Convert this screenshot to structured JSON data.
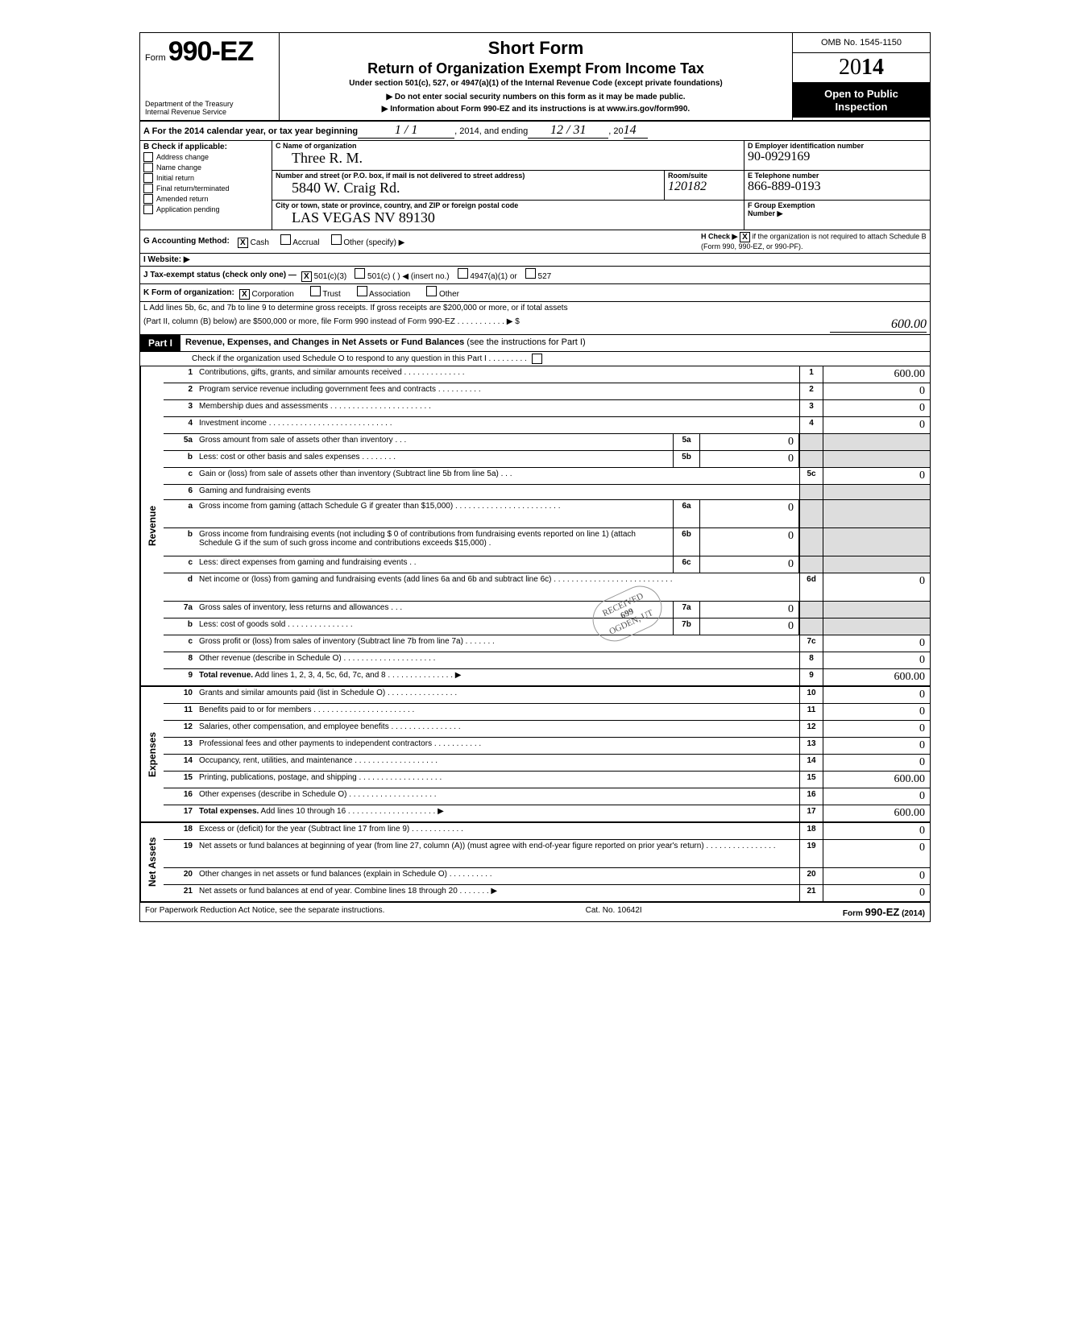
{
  "header": {
    "form_prefix": "Form",
    "form_number": "990-EZ",
    "dept1": "Department of the Treasury",
    "dept2": "Internal Revenue Service",
    "title_short": "Short Form",
    "title_main": "Return of Organization Exempt From Income Tax",
    "title_sub": "Under section 501(c), 527, or 4947(a)(1) of the Internal Revenue Code (except private foundations)",
    "note1": "Do not enter social security numbers on this form as it may be made public.",
    "note2": "Information about Form 990-EZ and its instructions is at www.irs.gov/form990.",
    "omb": "OMB No. 1545-1150",
    "year_prefix": "20",
    "year_bold": "14",
    "inspect1": "Open to Public",
    "inspect2": "Inspection"
  },
  "rowA": {
    "lbl": "A For the 2014 calendar year, or tax year beginning",
    "begin": "1 / 1",
    "mid": ", 2014, and ending",
    "end": "12 / 31",
    "yr_lbl": ", 20",
    "yr": "14"
  },
  "colB": {
    "hdr": "B Check if applicable:",
    "items": [
      "Address change",
      "Name change",
      "Initial return",
      "Final return/terminated",
      "Amended return",
      "Application pending"
    ]
  },
  "colC": {
    "name_lbl": "C  Name of organization",
    "name_val": "Three R. M.",
    "addr_lbl": "Number and street (or P.O. box, if mail is not delivered to street address)",
    "addr_val": "5840 W. Craig Rd.",
    "room_lbl": "Room/suite",
    "room_val": "120182",
    "city_lbl": "City or town, state or province, country, and ZIP or foreign postal code",
    "city_val": "LAS VEGAS    NV    89130"
  },
  "colD": {
    "ein_lbl": "D Employer identification number",
    "ein_val": "90-0929169",
    "tel_lbl": "E Telephone number",
    "tel_val": "866-889-0193",
    "grp_lbl": "F Group Exemption",
    "grp_lbl2": "Number ▶"
  },
  "lineG": {
    "lbl": "G Accounting Method:",
    "opts": [
      "Cash",
      "Accrual",
      "Other (specify) ▶"
    ],
    "checked": 0
  },
  "lineH": {
    "lbl": "H Check ▶",
    "txt": "if the organization is not required to attach Schedule B (Form 990, 990-EZ, or 990-PF).",
    "checked": true
  },
  "lineI": {
    "lbl": "I  Website: ▶"
  },
  "lineJ": {
    "lbl": "J Tax-exempt status (check only one) —",
    "opts": [
      "501(c)(3)",
      "501(c) (        ) ◀ (insert no.)",
      "4947(a)(1) or",
      "527"
    ],
    "checked": 0
  },
  "lineK": {
    "lbl": "K Form of organization:",
    "opts": [
      "Corporation",
      "Trust",
      "Association",
      "Other"
    ],
    "checked": 0
  },
  "lineL": {
    "txt1": "L Add lines 5b, 6c, and 7b to line 9 to determine gross receipts. If gross receipts are $200,000 or more, or if total assets",
    "txt2": "(Part II, column (B) below) are $500,000 or more, file Form 990 instead of Form 990-EZ .  .  .  .  .  .  .  .  .  .  .  ▶  $",
    "val": "600.00"
  },
  "part1": {
    "tag": "Part I",
    "title_b": "Revenue, Expenses, and Changes in Net Assets or Fund Balances",
    "title_rest": " (see the instructions for Part I)",
    "check_line": "Check if the organization used Schedule O to respond to any question in this Part I .  .  .  .  .  .  .  .  ."
  },
  "sections": [
    {
      "side": "Revenue",
      "lines": [
        {
          "n": "1",
          "d": "Contributions, gifts, grants, and similar amounts received .  .  .  .  .  .  .  .  .  .  .  .  .  .",
          "rn": "1",
          "rv": "600.00"
        },
        {
          "n": "2",
          "d": "Program service revenue including government fees and contracts  .  .  .  .  .  .  .  .  .  .",
          "rn": "2",
          "rv": "0"
        },
        {
          "n": "3",
          "d": "Membership dues and assessments .  .  .  .  .  .  .  .  .  .  .  .  .  .  .  .  .  .  .  .  .  .  .",
          "rn": "3",
          "rv": "0"
        },
        {
          "n": "4",
          "d": "Investment income   .  .  .  .  .  .  .  .  .  .  .  .  .  .  .  .  .  .  .  .  .  .  .  .  .  .  .  .",
          "rn": "4",
          "rv": "0"
        },
        {
          "n": "5a",
          "d": "Gross amount from sale of assets other than inventory   .  .  .",
          "mn": "5a",
          "mv": "0",
          "shade_r": true
        },
        {
          "n": "b",
          "d": "Less: cost or other basis and sales expenses .  .  .  .  .  .  .  .",
          "mn": "5b",
          "mv": "0",
          "shade_r": true
        },
        {
          "n": "c",
          "d": "Gain or (loss) from sale of assets other than inventory (Subtract line 5b from line 5a)  .  .  .",
          "rn": "5c",
          "rv": "0"
        },
        {
          "n": "6",
          "d": "Gaming and fundraising events",
          "shade_r": true,
          "no_rn": true
        },
        {
          "n": "a",
          "d": "Gross income from gaming (attach Schedule G if greater than $15,000) .  .  .  .  .  .  .  .  .  .  .  .  .  .  .  .  .  .  .  .  .  .  .  .",
          "mn": "6a",
          "mv": "0",
          "shade_r": true,
          "tall": true
        },
        {
          "n": "b",
          "d": "Gross income from fundraising events (not including  $              0    of contributions from fundraising events reported on line 1) (attach Schedule G if the sum of such gross income and contributions exceeds $15,000) .",
          "mn": "6b",
          "mv": "0",
          "shade_r": true,
          "tall": true
        },
        {
          "n": "c",
          "d": "Less: direct expenses from gaming and fundraising events   .  .",
          "mn": "6c",
          "mv": "0",
          "shade_r": true
        },
        {
          "n": "d",
          "d": "Net income or (loss) from gaming and fundraising events (add lines 6a and 6b and subtract line 6c)    .  .  .  .  .  .  .  .  .  .  .  .  .  .  .  .  .  .  .  .  .  .  .  .  .  .  .",
          "rn": "6d",
          "rv": "0",
          "tall": true
        },
        {
          "n": "7a",
          "d": "Gross sales of inventory, less returns and allowances   .  .  .",
          "mn": "7a",
          "mv": "0",
          "shade_r": true
        },
        {
          "n": "b",
          "d": "Less: cost of goods sold    .  .  .  .  .  .  .  .  .  .  .  .  .  .  .",
          "mn": "7b",
          "mv": "0",
          "shade_r": true
        },
        {
          "n": "c",
          "d": "Gross profit or (loss) from sales of inventory (Subtract line 7b from line 7a)  .  .  .  .  .  .  .",
          "rn": "7c",
          "rv": "0"
        },
        {
          "n": "8",
          "d": "Other revenue (describe in Schedule O) .  .  .  .  .  .  .  .  .  .  .  .  .  .  .  .  .  .  .  .  .",
          "rn": "8",
          "rv": "0"
        },
        {
          "n": "9",
          "d": "Total revenue. Add lines 1, 2, 3, 4, 5c, 6d, 7c, and 8   .  .  .  .  .  .  .  .  .  .  .  .  .  .  . ▶",
          "rn": "9",
          "rv": "600.00",
          "bold": true
        }
      ]
    },
    {
      "side": "Expenses",
      "lines": [
        {
          "n": "10",
          "d": "Grants and similar amounts paid (list in Schedule O)  .  .  .  .  .  .  .  .  .  .  .  .  .  .  .  .",
          "rn": "10",
          "rv": "0"
        },
        {
          "n": "11",
          "d": "Benefits paid to or for members   .  .  .  .  .  .  .  .  .  .  .  .  .  .  .  .  .  .  .  .  .  .  .",
          "rn": "11",
          "rv": "0"
        },
        {
          "n": "12",
          "d": "Salaries, other compensation, and employee benefits  .  .  .  .  .  .  .  .  .  .  .  .  .  .  .  .",
          "rn": "12",
          "rv": "0"
        },
        {
          "n": "13",
          "d": "Professional fees and other payments to independent contractors .  .  .  .  .  .  .  .  .  .  .",
          "rn": "13",
          "rv": "0"
        },
        {
          "n": "14",
          "d": "Occupancy, rent, utilities, and maintenance   .  .  .  .  .  .  .  .  .  .  .  .  .  .  .  .  .  .  .",
          "rn": "14",
          "rv": "0"
        },
        {
          "n": "15",
          "d": "Printing, publications, postage, and shipping .  .  .  .  .  .  .  .  .  .  .  .  .  .  .  .  .  .  .",
          "rn": "15",
          "rv": "600.00"
        },
        {
          "n": "16",
          "d": "Other expenses (describe in Schedule O)  .  .  .  .  .  .  .  .  .  .  .  .  .  .  .  .  .  .  .  .",
          "rn": "16",
          "rv": "0"
        },
        {
          "n": "17",
          "d": "Total expenses. Add lines 10 through 16 .  .  .  .  .  .  .  .  .  .  .  .  .  .  .  .  .  .  .  . ▶",
          "rn": "17",
          "rv": "600.00",
          "bold": true
        }
      ]
    },
    {
      "side": "Net Assets",
      "lines": [
        {
          "n": "18",
          "d": "Excess or (deficit) for the year (Subtract line 17 from line 9)   .  .  .  .  .  .  .  .  .  .  .  .",
          "rn": "18",
          "rv": "0"
        },
        {
          "n": "19",
          "d": "Net assets or fund balances at beginning of year (from line 27, column (A)) (must agree with end-of-year figure reported on prior year's return)    .  .  .  .  .  .  .  .  .  .  .  .  .  .  .  .",
          "rn": "19",
          "rv": "0",
          "tall": true
        },
        {
          "n": "20",
          "d": "Other changes in net assets or fund balances (explain in Schedule O) .  .  .  .  .  .  .  .  .  .",
          "rn": "20",
          "rv": "0"
        },
        {
          "n": "21",
          "d": "Net assets or fund balances at end of year. Combine lines 18 through 20   .  .  .  .  .  .  . ▶",
          "rn": "21",
          "rv": "0"
        }
      ]
    }
  ],
  "footer": {
    "left": "For Paperwork Reduction Act Notice, see the separate instructions.",
    "mid": "Cat. No. 10642I",
    "right_pre": "Form ",
    "right_num": "990-EZ",
    "right_suf": " (2014)"
  },
  "stamp": {
    "line1": "RECEIVED",
    "line2": "699",
    "line3": "OGDEN, UT"
  }
}
